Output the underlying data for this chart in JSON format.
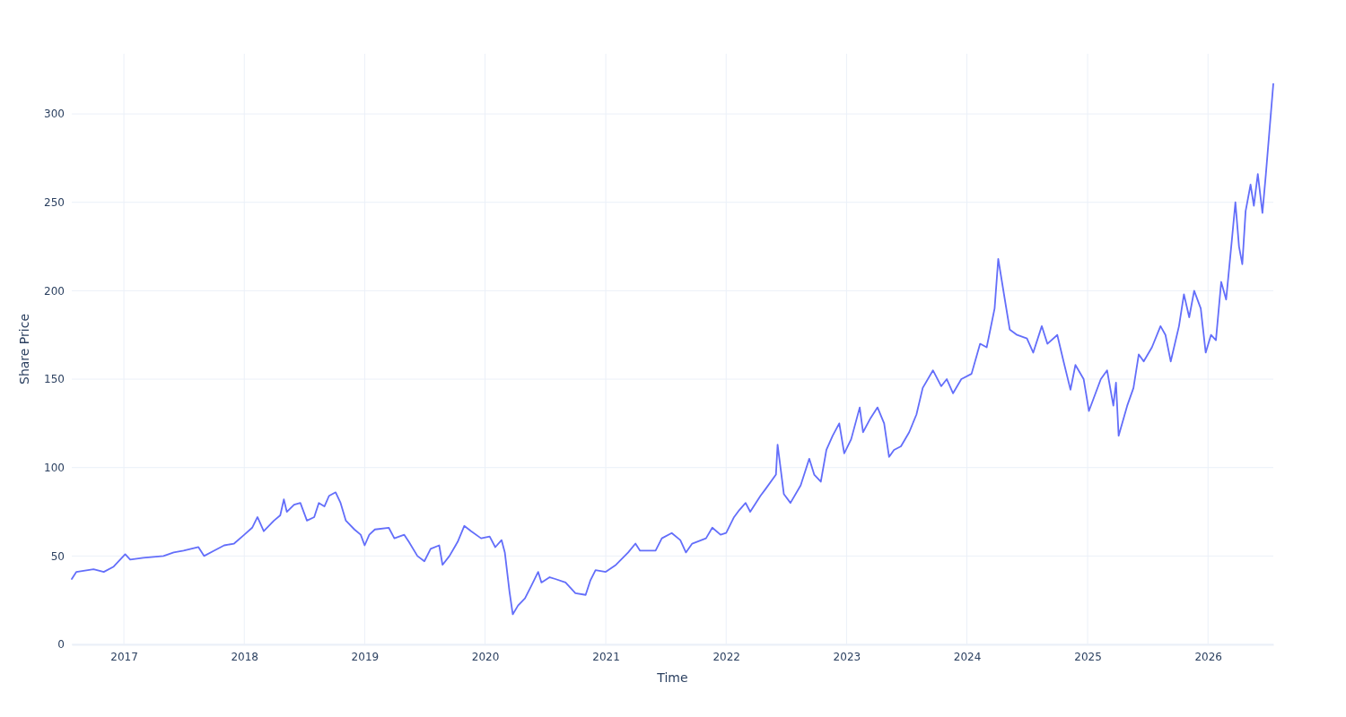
{
  "chart_data": {
    "type": "line",
    "xlabel": "Time",
    "ylabel": "Share Price",
    "xlim": [
      "2016-07-27",
      "2026-07-18"
    ],
    "xticks": [
      "2017",
      "2018",
      "2019",
      "2020",
      "2021",
      "2022",
      "2023",
      "2024",
      "2025",
      "2026"
    ],
    "ylim": [
      0,
      334
    ],
    "yticks": [
      0,
      50,
      100,
      150,
      200,
      250,
      300
    ],
    "grid": true,
    "marker": "none",
    "line_style": "solid",
    "x": [
      "2016-07-27",
      "2016-08-10",
      "2016-10-01",
      "2016-11-01",
      "2016-12-01",
      "2017-01-05",
      "2017-01-20",
      "2017-03-01",
      "2017-05-01",
      "2017-06-01",
      "2017-07-01",
      "2017-08-15",
      "2017-09-01",
      "2017-10-01",
      "2017-11-01",
      "2017-12-01",
      "2018-01-01",
      "2018-01-25",
      "2018-02-10",
      "2018-03-01",
      "2018-04-01",
      "2018-04-20",
      "2018-05-01",
      "2018-05-10",
      "2018-06-01",
      "2018-06-20",
      "2018-07-10",
      "2018-08-01",
      "2018-08-15",
      "2018-09-01",
      "2018-09-15",
      "2018-10-05",
      "2018-10-20",
      "2018-11-05",
      "2018-12-01",
      "2018-12-20",
      "2019-01-01",
      "2019-01-15",
      "2019-02-01",
      "2019-03-15",
      "2019-04-01",
      "2019-05-01",
      "2019-05-15",
      "2019-06-10",
      "2019-07-01",
      "2019-07-20",
      "2019-08-15",
      "2019-08-25",
      "2019-09-15",
      "2019-10-10",
      "2019-10-30",
      "2019-11-20",
      "2019-12-20",
      "2020-01-15",
      "2020-02-01",
      "2020-02-20",
      "2020-03-01",
      "2020-03-15",
      "2020-03-25",
      "2020-04-10",
      "2020-05-01",
      "2020-05-20",
      "2020-06-10",
      "2020-06-20",
      "2020-07-15",
      "2020-08-01",
      "2020-09-01",
      "2020-10-01",
      "2020-11-01",
      "2020-11-15",
      "2020-12-01",
      "2021-01-01",
      "2021-02-01",
      "2021-03-10",
      "2021-04-01",
      "2021-04-15",
      "2021-06-01",
      "2021-06-20",
      "2021-07-20",
      "2021-08-15",
      "2021-09-01",
      "2021-09-20",
      "2021-11-01",
      "2021-11-20",
      "2021-12-15",
      "2022-01-01",
      "2022-01-25",
      "2022-02-10",
      "2022-03-01",
      "2022-03-15",
      "2022-04-15",
      "2022-05-01",
      "2022-06-01",
      "2022-06-06",
      "2022-06-25",
      "2022-07-15",
      "2022-08-15",
      "2022-09-10",
      "2022-09-25",
      "2022-10-15",
      "2022-11-01",
      "2022-11-20",
      "2022-12-10",
      "2022-12-25",
      "2023-01-15",
      "2023-02-10",
      "2023-02-20",
      "2023-03-15",
      "2023-04-05",
      "2023-04-25",
      "2023-05-10",
      "2023-05-25",
      "2023-06-15",
      "2023-07-10",
      "2023-08-01",
      "2023-08-20",
      "2023-09-20",
      "2023-10-15",
      "2023-11-01",
      "2023-11-20",
      "2023-12-15",
      "2024-01-15",
      "2024-02-10",
      "2024-03-01",
      "2024-03-25",
      "2024-04-05",
      "2024-04-25",
      "2024-05-10",
      "2024-06-01",
      "2024-07-01",
      "2024-07-20",
      "2024-08-15",
      "2024-09-01",
      "2024-10-01",
      "2024-10-20",
      "2024-11-10",
      "2024-11-25",
      "2024-12-20",
      "2025-01-05",
      "2025-02-10",
      "2025-03-01",
      "2025-03-20",
      "2025-03-28",
      "2025-04-05",
      "2025-05-01",
      "2025-05-20",
      "2025-06-05",
      "2025-06-20",
      "2025-07-15",
      "2025-08-10",
      "2025-08-25",
      "2025-09-10",
      "2025-10-05",
      "2025-10-20",
      "2025-11-05",
      "2025-11-20",
      "2025-12-10",
      "2025-12-25",
      "2026-01-10",
      "2026-01-25",
      "2026-02-10",
      "2026-02-25",
      "2026-03-15",
      "2026-03-25",
      "2026-04-05",
      "2026-04-15",
      "2026-04-25",
      "2026-05-10",
      "2026-05-20",
      "2026-06-01",
      "2026-06-15",
      "2026-06-25",
      "2026-07-18"
    ],
    "series": [
      {
        "color": "#636efa",
        "values": [
          37,
          41,
          42.5,
          41,
          44,
          51,
          48,
          49,
          50,
          52,
          53,
          55,
          50,
          53,
          56,
          57,
          62,
          66,
          72,
          64,
          70,
          73,
          82,
          75,
          79,
          80,
          70,
          72,
          80,
          78,
          84,
          86,
          80,
          70,
          65,
          62,
          56,
          62,
          65,
          66,
          60,
          62,
          58,
          50,
          47,
          54,
          56,
          45,
          50,
          58,
          67,
          64,
          60,
          61,
          55,
          59,
          52,
          30,
          17,
          22,
          26,
          33,
          41,
          35,
          38,
          37,
          35,
          29,
          28,
          36,
          42,
          41,
          45,
          52,
          57,
          53,
          53,
          60,
          63,
          59,
          52,
          57,
          60,
          66,
          62,
          63,
          72,
          76,
          80,
          75,
          84,
          88,
          96,
          113,
          85,
          80,
          90,
          105,
          96,
          92,
          110,
          118,
          125,
          108,
          116,
          134,
          120,
          128,
          134,
          125,
          106,
          110,
          112,
          120,
          130,
          145,
          155,
          146,
          150,
          142,
          150,
          153,
          170,
          168,
          190,
          218,
          195,
          178,
          175,
          173,
          165,
          180,
          170,
          175,
          160,
          144,
          158,
          150,
          132,
          150,
          155,
          135,
          148,
          118,
          135,
          145,
          164,
          160,
          168,
          180,
          175,
          160,
          180,
          198,
          185,
          200,
          190,
          165,
          175,
          172,
          205,
          195,
          230,
          250,
          225,
          215,
          245,
          260,
          248,
          266,
          244,
          265,
          317
        ]
      }
    ]
  }
}
